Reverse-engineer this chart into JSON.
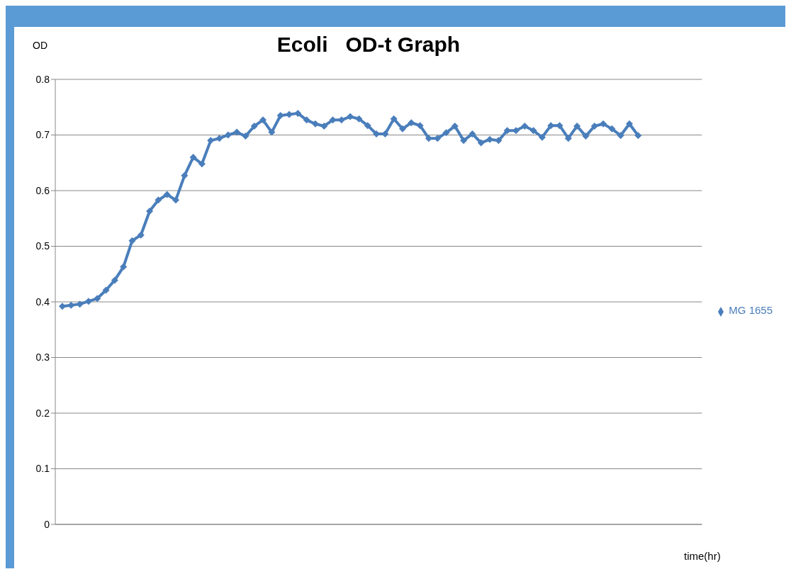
{
  "chart_data": {
    "type": "line",
    "title": "Ecoli   OD-t Graph",
    "ylabel": "OD",
    "xlabel": "time(hr)",
    "categories": [
      null,
      null,
      null,
      null,
      null,
      null,
      null,
      null,
      null,
      null,
      null,
      null,
      null,
      null,
      null,
      null,
      null,
      null,
      null,
      null,
      null,
      null,
      null,
      null,
      null,
      null,
      null,
      null,
      null,
      null,
      null,
      null,
      null,
      null,
      null,
      null,
      null,
      null,
      null,
      null,
      null,
      null,
      null,
      null,
      null,
      null,
      null,
      null,
      null,
      null,
      null,
      null,
      null,
      null,
      null,
      null,
      null,
      null,
      null,
      null,
      null,
      null,
      null,
      null,
      null,
      null,
      null
    ],
    "series": [
      {
        "name": "MG 1655",
        "color": "#4a7ebb",
        "values": [
          0.392,
          0.394,
          0.396,
          0.401,
          0.406,
          0.421,
          0.439,
          0.463,
          0.51,
          0.52,
          0.563,
          0.583,
          0.593,
          0.583,
          0.627,
          0.66,
          0.648,
          0.69,
          0.694,
          0.7,
          0.705,
          0.698,
          0.716,
          0.727,
          0.705,
          0.735,
          0.737,
          0.739,
          0.727,
          0.72,
          0.716,
          0.727,
          0.727,
          0.733,
          0.729,
          0.717,
          0.702,
          0.702,
          0.729,
          0.711,
          0.722,
          0.717,
          0.694,
          0.694,
          0.704,
          0.716,
          0.69,
          0.702,
          0.686,
          0.692,
          0.69,
          0.708,
          0.708,
          0.716,
          0.708,
          0.696,
          0.717,
          0.717,
          0.694,
          0.716,
          0.698,
          0.716,
          0.72,
          0.711,
          0.699,
          0.72,
          0.699
        ]
      }
    ],
    "ylim": [
      0,
      0.8
    ],
    "yticks": [
      0,
      0.1,
      0.2,
      0.3,
      0.4,
      0.5,
      0.6,
      0.7,
      0.8
    ],
    "grid": "y",
    "legend": "right",
    "marker": "diamond",
    "line_style": "solid"
  }
}
